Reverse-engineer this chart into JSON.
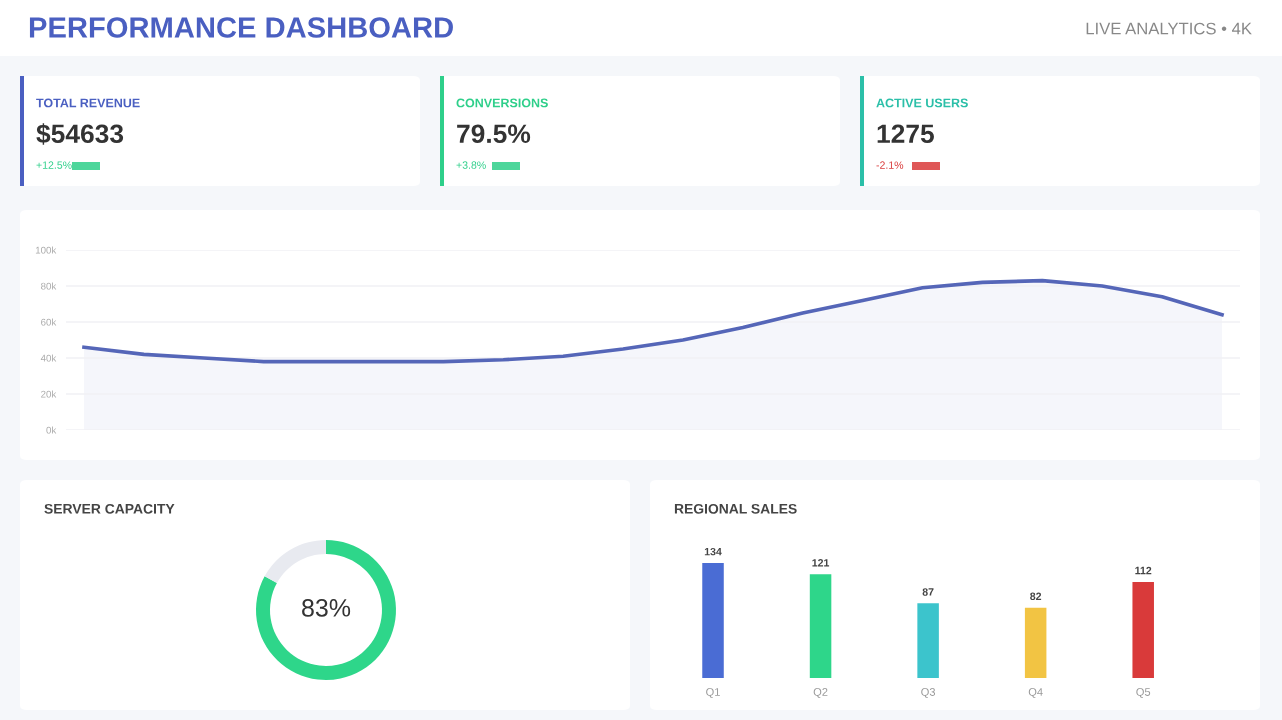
{
  "chart_data": [
    {
      "type": "other",
      "title": "PERFORMANCE DASHBOARD",
      "annotations": [
        "LIVE ANALYTICS • 4K"
      ]
    },
    {
      "type": "other",
      "title": "TOTAL REVENUE",
      "color": "#4a5fc1",
      "annotations": [
        "$54633",
        "+12.5%"
      ],
      "colors": [
        "#333333",
        "#2ecf8a"
      ]
    },
    {
      "type": "other",
      "title": "CONVERSIONS",
      "color": "#2ecf8a",
      "annotations": [
        "79.5%",
        "+3.8%"
      ],
      "colors": [
        "#333333",
        "#2ecf8a"
      ]
    },
    {
      "type": "other",
      "title": "ACTIVE USERS",
      "color": "#2bbfa8",
      "annotations": [
        "1275",
        "-2.1%"
      ],
      "colors": [
        "#333333",
        "#d93a3a"
      ]
    },
    {
      "type": "area",
      "categories": [
        null,
        null,
        null,
        null,
        null,
        null,
        null,
        null,
        null,
        null,
        null,
        null,
        null,
        null,
        null,
        null,
        null,
        null,
        null,
        null
      ],
      "series": [
        {
          "color": "#5566b8",
          "values": [
            46,
            42,
            40,
            38,
            38,
            38,
            38,
            39,
            41,
            45,
            50,
            57,
            65,
            72,
            79,
            82,
            83,
            80,
            74,
            64
          ]
        }
      ],
      "ylim": [
        0,
        100
      ],
      "yticks": [
        {
          "value": 0,
          "label": "0k"
        },
        {
          "value": 20,
          "label": "20k"
        },
        {
          "value": 40,
          "label": "40k"
        },
        {
          "value": 60,
          "label": "60k"
        },
        {
          "value": 80,
          "label": "80k"
        },
        {
          "value": 100,
          "label": "100k"
        }
      ],
      "grid": "y",
      "marker": "none",
      "line_style": "solid"
    },
    {
      "type": "donut",
      "title": "SERVER CAPACITY",
      "categories": [
        null,
        null
      ],
      "values": [
        83,
        17
      ],
      "colors": [
        "#2ed68a",
        "#e8eaf0"
      ],
      "annotations": [
        "83%"
      ]
    },
    {
      "type": "bar",
      "title": "REGIONAL SALES",
      "categories": [
        "Q1",
        "Q2",
        "Q3",
        "Q4",
        "Q5"
      ],
      "values": [
        134,
        121,
        87,
        82,
        112
      ],
      "colors": [
        "#4a6cd4",
        "#2ed68a",
        "#3cc4cc",
        "#f2c443",
        "#d93a3a"
      ],
      "data_labels": true
    }
  ]
}
